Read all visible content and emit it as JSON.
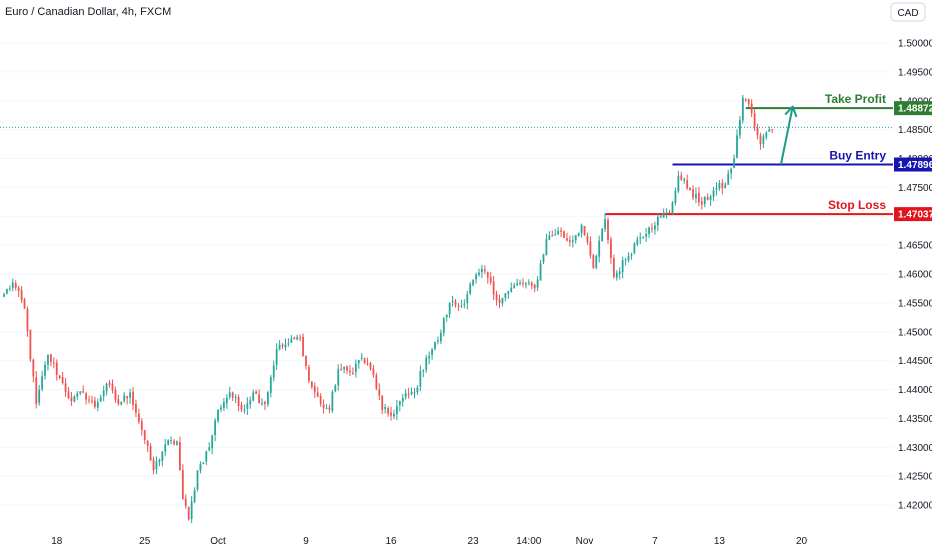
{
  "chart_data": {
    "type": "candlestick",
    "title": "Euro / Canadian Dollar, 4h, FXCM",
    "currency_badge": "CAD",
    "ylim": [
      1.4164,
      1.5088
    ],
    "y_ticks": [
      "1.50000",
      "1.49500",
      "1.49000",
      "1.48500",
      "1.48000",
      "1.47500",
      "1.47000",
      "1.46500",
      "1.46000",
      "1.45500",
      "1.45000",
      "1.44500",
      "1.44000",
      "1.43500",
      "1.43000",
      "1.42500",
      "1.42000"
    ],
    "x_ticks": [
      {
        "label": "18",
        "bar": 18
      },
      {
        "label": "25",
        "bar": 48
      },
      {
        "label": "Oct",
        "bar": 73
      },
      {
        "label": "9",
        "bar": 103
      },
      {
        "label": "16",
        "bar": 132
      },
      {
        "label": "23",
        "bar": 160
      },
      {
        "label": "14:00",
        "bar": 179
      },
      {
        "label": "Nov",
        "bar": 198
      },
      {
        "label": "7",
        "bar": 222
      },
      {
        "label": "13",
        "bar": 244
      },
      {
        "label": "20",
        "bar": 272
      }
    ],
    "anchors": [
      [
        0,
        1.4565
      ],
      [
        3,
        1.4585
      ],
      [
        7,
        1.454
      ],
      [
        11,
        1.4375
      ],
      [
        15,
        1.446
      ],
      [
        19,
        1.442
      ],
      [
        23,
        1.438
      ],
      [
        27,
        1.4395
      ],
      [
        31,
        1.437
      ],
      [
        35,
        1.441
      ],
      [
        39,
        1.4375
      ],
      [
        43,
        1.4395
      ],
      [
        47,
        1.433
      ],
      [
        51,
        1.426
      ],
      [
        55,
        1.4305
      ],
      [
        59,
        1.431
      ],
      [
        61,
        1.421
      ],
      [
        63,
        1.4175
      ],
      [
        66,
        1.426
      ],
      [
        70,
        1.43
      ],
      [
        73,
        1.4365
      ],
      [
        77,
        1.4395
      ],
      [
        81,
        1.4365
      ],
      [
        85,
        1.4395
      ],
      [
        89,
        1.4375
      ],
      [
        93,
        1.447
      ],
      [
        97,
        1.448
      ],
      [
        101,
        1.449
      ],
      [
        104,
        1.4415
      ],
      [
        108,
        1.4375
      ],
      [
        111,
        1.4365
      ],
      [
        114,
        1.4435
      ],
      [
        118,
        1.443
      ],
      [
        122,
        1.4455
      ],
      [
        126,
        1.4425
      ],
      [
        129,
        1.4365
      ],
      [
        132,
        1.4355
      ],
      [
        136,
        1.4385
      ],
      [
        140,
        1.4395
      ],
      [
        144,
        1.4455
      ],
      [
        148,
        1.4485
      ],
      [
        152,
        1.455
      ],
      [
        156,
        1.4545
      ],
      [
        160,
        1.459
      ],
      [
        164,
        1.4605
      ],
      [
        168,
        1.4555
      ],
      [
        172,
        1.457
      ],
      [
        176,
        1.4585
      ],
      [
        181,
        1.4575
      ],
      [
        185,
        1.466
      ],
      [
        189,
        1.4675
      ],
      [
        193,
        1.4655
      ],
      [
        197,
        1.4685
      ],
      [
        201,
        1.461
      ],
      [
        205,
        1.4695
      ],
      [
        208,
        1.4595
      ],
      [
        212,
        1.4625
      ],
      [
        216,
        1.466
      ],
      [
        220,
        1.468
      ],
      [
        224,
        1.47
      ],
      [
        227,
        1.4705
      ],
      [
        230,
        1.477
      ],
      [
        234,
        1.4745
      ],
      [
        238,
        1.472
      ],
      [
        242,
        1.4745
      ],
      [
        246,
        1.4755
      ],
      [
        249,
        1.48
      ],
      [
        252,
        1.4905
      ],
      [
        254,
        1.4895
      ],
      [
        256,
        1.4855
      ],
      [
        258,
        1.4825
      ],
      [
        260,
        1.4845
      ],
      [
        262,
        1.485
      ]
    ],
    "last_price": 1.4854,
    "levels": [
      {
        "name": "Take Profit",
        "value": 1.48872,
        "tag": "1.48872",
        "color": "#2e7d32",
        "start_bar": 253
      },
      {
        "name": "Buy Entry",
        "value": 1.47896,
        "tag": "1.47896",
        "color": "#1515b0",
        "start_bar": 228
      },
      {
        "name": "Stop Loss",
        "value": 1.47037,
        "tag": "1.47037",
        "color": "#e3151c",
        "start_bar": 205
      }
    ],
    "arrow": {
      "from_bar": 265,
      "from_value": 1.479,
      "to_bar": 269,
      "to_value": 1.489,
      "color": "#1c9a8a"
    },
    "colors": {
      "up": "#26a69a",
      "down": "#ef5350",
      "grid": "#f0f3fa",
      "axis_text": "#131722"
    },
    "grid": false,
    "legend": "none"
  }
}
